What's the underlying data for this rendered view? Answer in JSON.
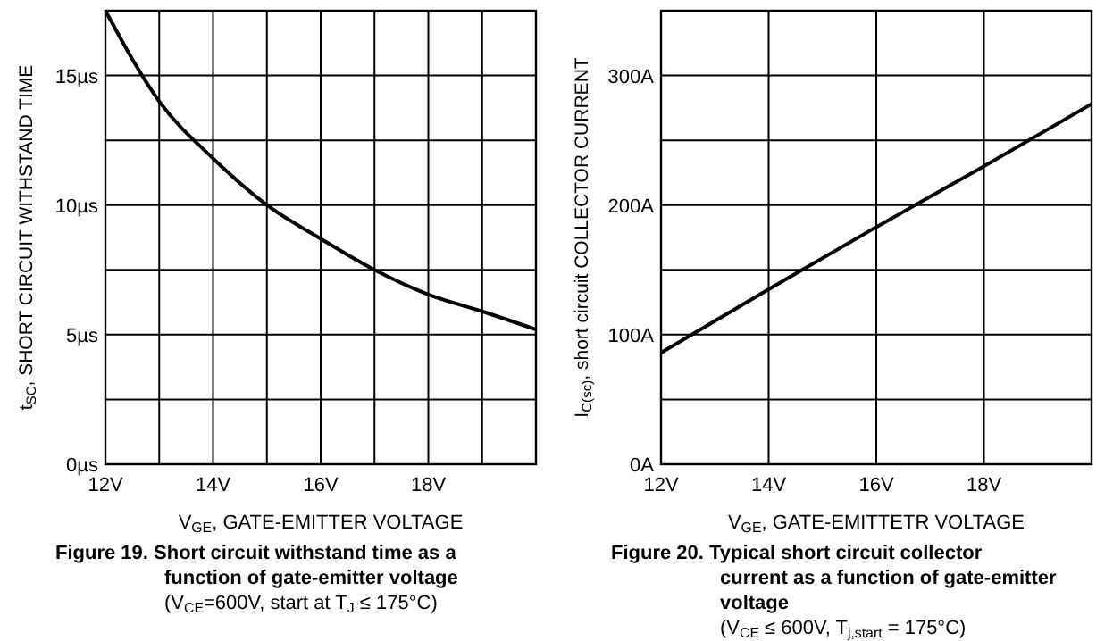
{
  "chart_data": [
    {
      "type": "line",
      "title": "Figure 19.  Short circuit withstand time as a function of gate-emitter voltage",
      "subtitle": "(V$_{CE}$=600V, start at T$_{J}$ ≤ 175°C)",
      "xlabel": "V$_{GE}$, GATE-EMITTER VOLTAGE",
      "ylabel": "t$_{SC}$, SHORT CIRCUIT WITHSTAND TIME",
      "x": [
        12,
        13,
        14,
        15,
        16,
        17,
        18,
        19,
        20
      ],
      "series": [
        {
          "color": "#000000",
          "values": [
            17.5,
            14.0,
            11.8,
            10.0,
            8.7,
            7.5,
            6.55,
            5.9,
            5.2
          ]
        }
      ],
      "xlim": [
        12,
        20
      ],
      "xticks": [
        {
          "value": 12,
          "label": "12V"
        },
        {
          "value": 13,
          "label": null
        },
        {
          "value": 14,
          "label": "14V"
        },
        {
          "value": 15,
          "label": null
        },
        {
          "value": 16,
          "label": "16V"
        },
        {
          "value": 17,
          "label": null
        },
        {
          "value": 18,
          "label": "18V"
        },
        {
          "value": 19,
          "label": null
        }
      ],
      "ylim": [
        0,
        17.5
      ],
      "yticks": [
        {
          "value": 0,
          "label": "0µs"
        },
        {
          "value": 2.5,
          "label": null
        },
        {
          "value": 5,
          "label": "5µs"
        },
        {
          "value": 7.5,
          "label": null
        },
        {
          "value": 10,
          "label": "10µs"
        },
        {
          "value": 12.5,
          "label": null
        },
        {
          "value": 15,
          "label": "15µs"
        }
      ],
      "grid": true,
      "marker": "none",
      "line_style": "solid"
    },
    {
      "type": "line",
      "title": "Figure 20.  Typical short circuit collector current as a function of gate-emitter voltage",
      "subtitle": "(V$_{CE}$ ≤ 600V, T$_{j,start}$ = 175°C)",
      "xlabel": "V$_{GE}$, GATE-EMITTETR VOLTAGE",
      "ylabel": "I$_{C(sc)}$, short circuit COLLECTOR CURRENT",
      "x": [
        12,
        14,
        16,
        18,
        20
      ],
      "series": [
        {
          "color": "#000000",
          "values": [
            86,
            135,
            183,
            230,
            278
          ]
        }
      ],
      "xlim": [
        12,
        20
      ],
      "xticks": [
        {
          "value": 12,
          "label": "12V"
        },
        {
          "value": 14,
          "label": "14V"
        },
        {
          "value": 16,
          "label": "16V"
        },
        {
          "value": 18,
          "label": "18V"
        }
      ],
      "ylim": [
        0,
        350
      ],
      "yticks": [
        {
          "value": 0,
          "label": "0A"
        },
        {
          "value": 50,
          "label": null
        },
        {
          "value": 100,
          "label": "100A"
        },
        {
          "value": 150,
          "label": null
        },
        {
          "value": 200,
          "label": "200A"
        },
        {
          "value": 250,
          "label": null
        },
        {
          "value": 300,
          "label": "300A"
        }
      ],
      "grid": true,
      "marker": "none",
      "line_style": "solid"
    }
  ]
}
